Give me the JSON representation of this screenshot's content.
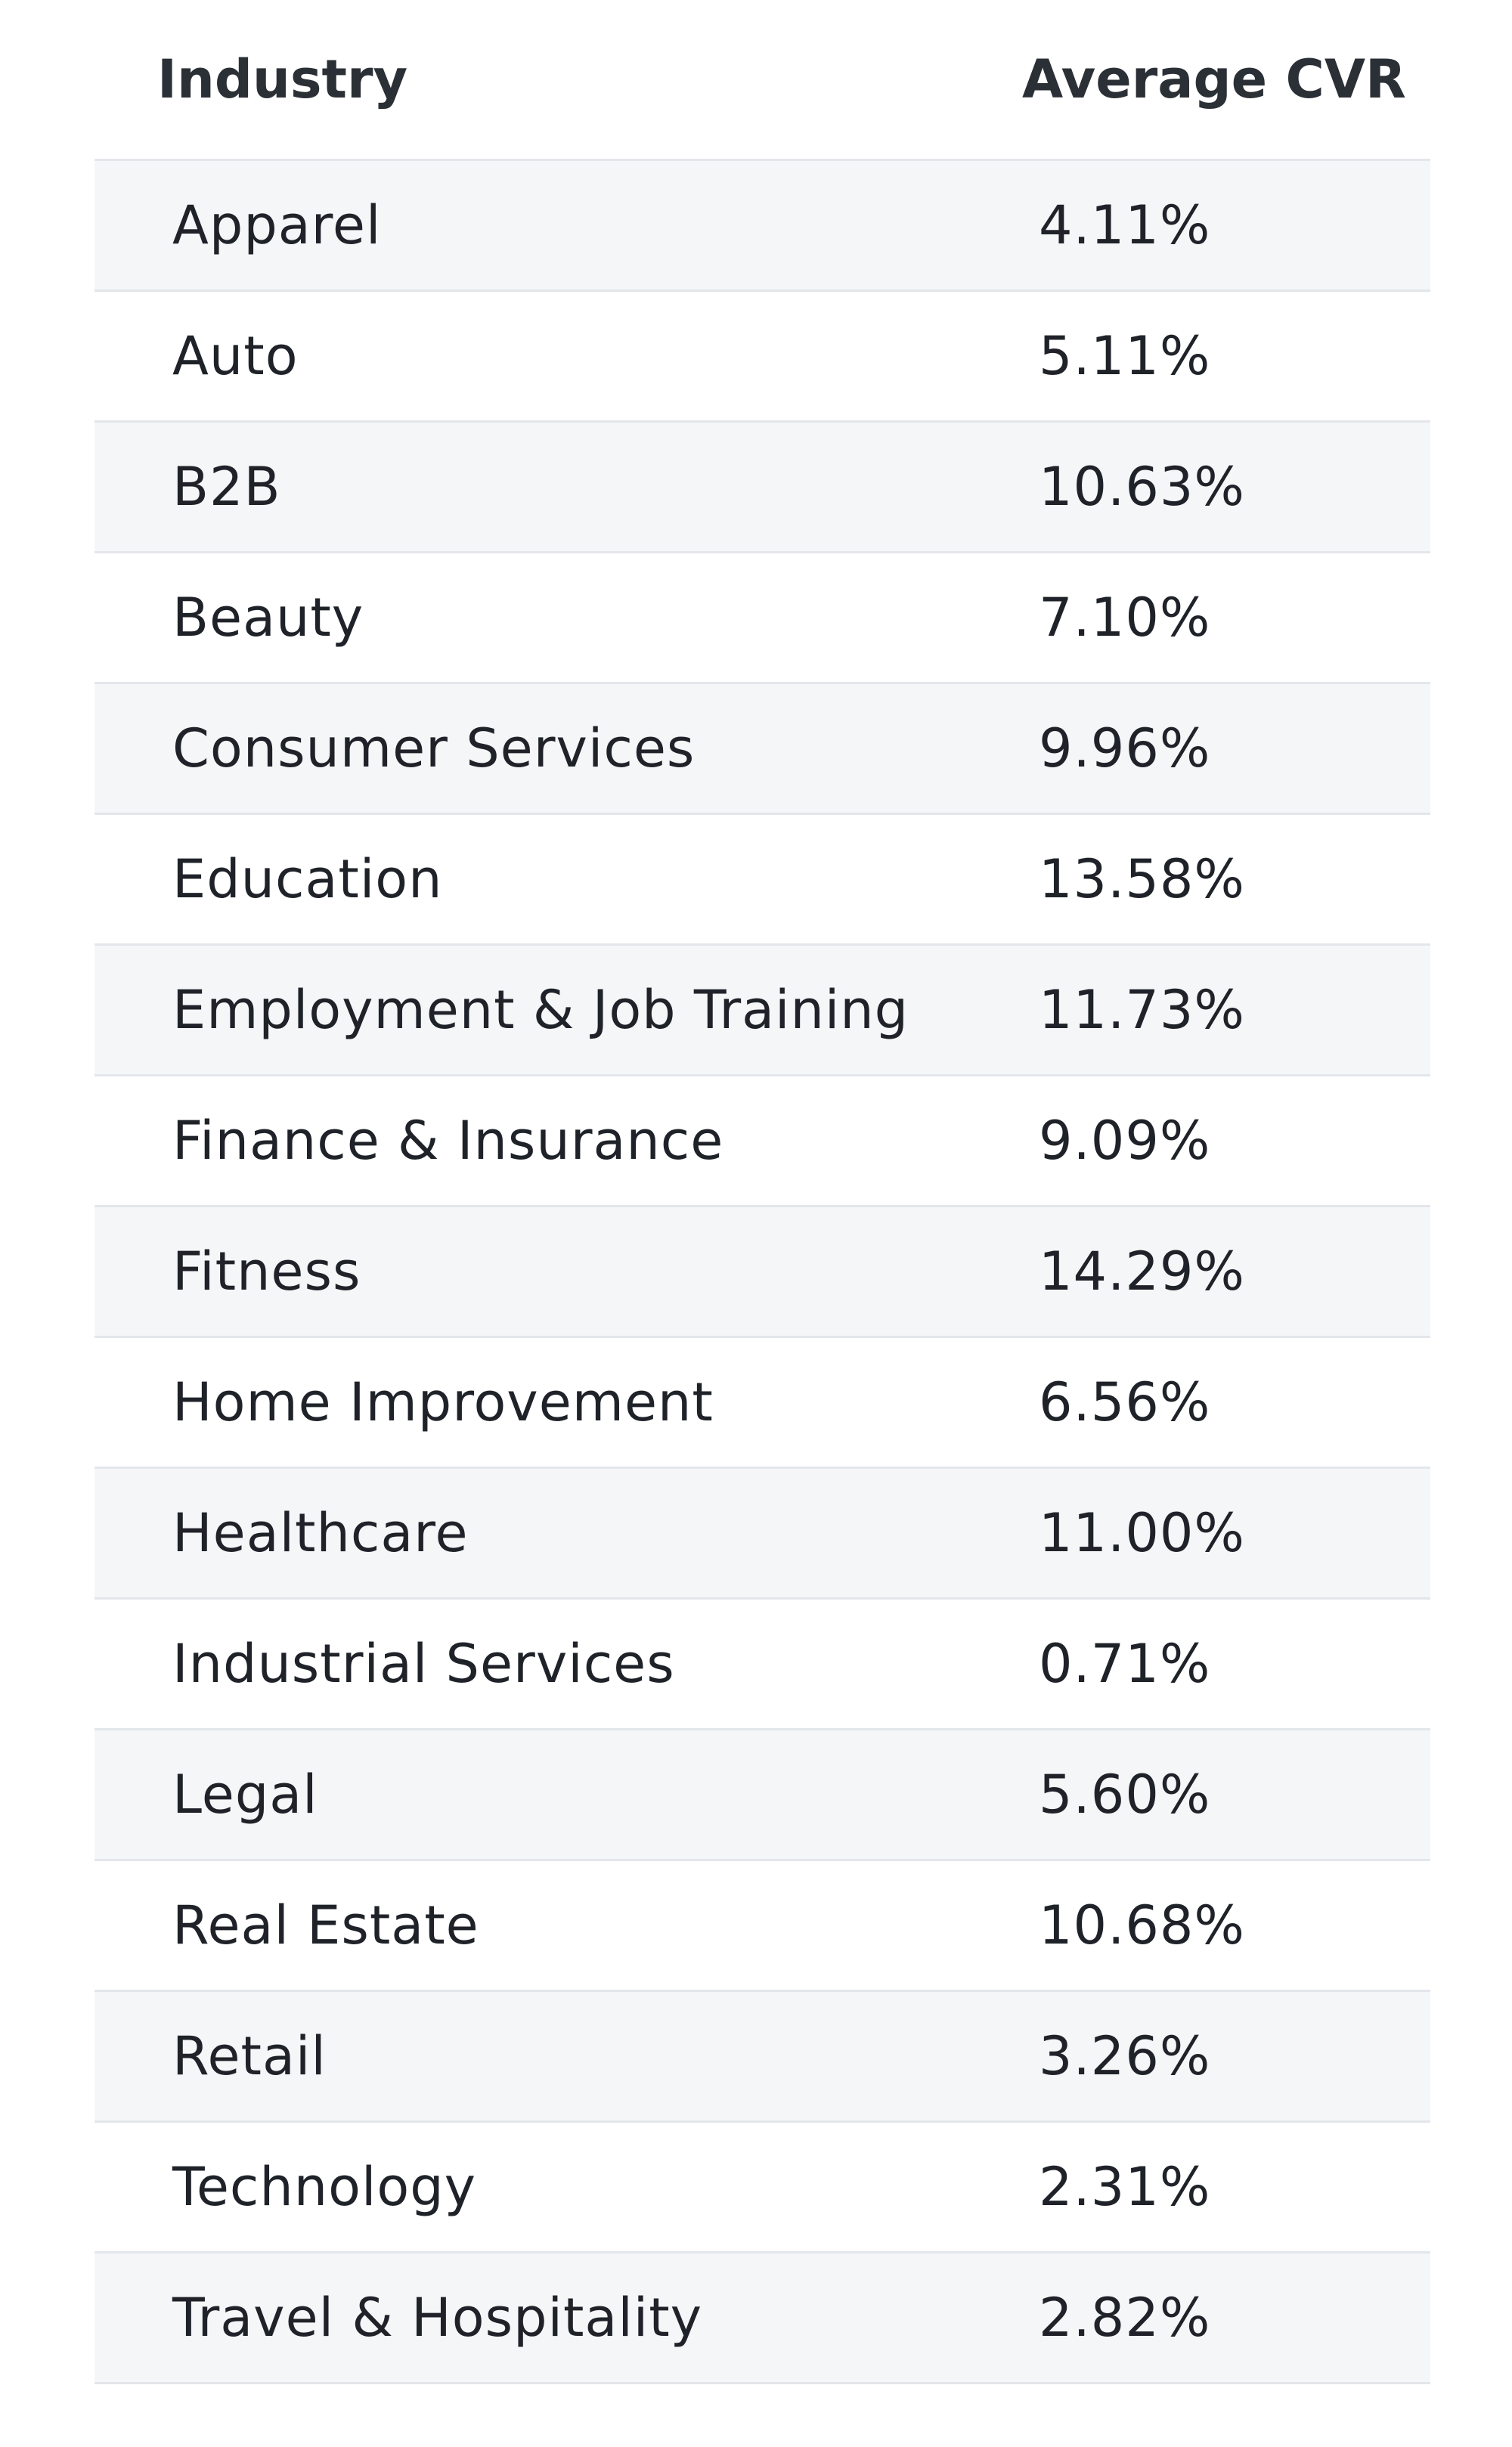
{
  "table": {
    "headers": {
      "industry": "Industry",
      "cvr": "Average CVR"
    },
    "rows": [
      {
        "industry": "Apparel",
        "cvr": "4.11%"
      },
      {
        "industry": "Auto",
        "cvr": "5.11%"
      },
      {
        "industry": "B2B",
        "cvr": "10.63%"
      },
      {
        "industry": "Beauty",
        "cvr": "7.10%"
      },
      {
        "industry": "Consumer Services",
        "cvr": "9.96%"
      },
      {
        "industry": "Education",
        "cvr": "13.58%"
      },
      {
        "industry": "Employment & Job Training",
        "cvr": "11.73%"
      },
      {
        "industry": "Finance & Insurance",
        "cvr": "9.09%"
      },
      {
        "industry": "Fitness",
        "cvr": "14.29%"
      },
      {
        "industry": "Home Improvement",
        "cvr": "6.56%"
      },
      {
        "industry": "Healthcare",
        "cvr": "11.00%"
      },
      {
        "industry": "Industrial Services",
        "cvr": "0.71%"
      },
      {
        "industry": "Legal",
        "cvr": "5.60%"
      },
      {
        "industry": "Real Estate",
        "cvr": "10.68%"
      },
      {
        "industry": "Retail",
        "cvr": "3.26%"
      },
      {
        "industry": "Technology",
        "cvr": "2.31%"
      },
      {
        "industry": "Travel & Hospitality",
        "cvr": "2.82%"
      }
    ]
  }
}
